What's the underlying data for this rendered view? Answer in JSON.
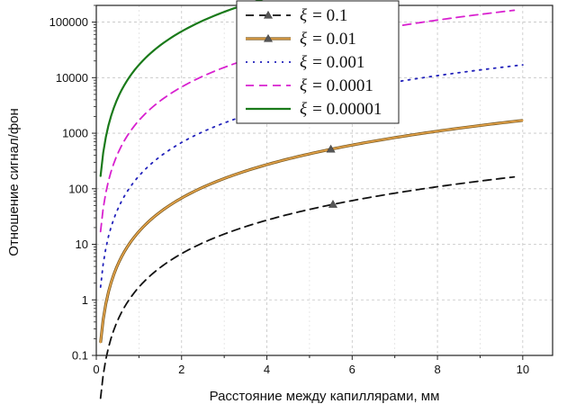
{
  "chart_data": {
    "type": "line",
    "title": "",
    "xlabel": "Расстояние между капиллярами, мм",
    "ylabel": "Отношение сигнал/фон",
    "xlim": [
      0,
      10.7
    ],
    "ylim": [
      0.1,
      200000
    ],
    "yscale": "log",
    "grid": true,
    "legend_position": "top-right",
    "x_ticks": [
      0,
      2,
      4,
      6,
      8,
      10
    ],
    "x_tick_labels": [
      "0",
      "2",
      "4",
      "6",
      "8",
      "10"
    ],
    "y_ticks": [
      0.1,
      1,
      10,
      100,
      1000,
      10000,
      100000
    ],
    "y_tick_labels": [
      "0.1",
      "1",
      "10",
      "100",
      "1000",
      "10000",
      "100000"
    ],
    "series": [
      {
        "name": "ξ = 0.1",
        "legend_symbol": "ξ",
        "legend_value": "= 0.1",
        "xi": 0.1,
        "color": "#111111",
        "dash": "dashed",
        "marker": "triangle",
        "marker_points": [
          5.55
        ],
        "x_range": [
          0.1,
          9.8
        ],
        "y_at_x1": 1.7
      },
      {
        "name": "ξ = 0.01",
        "legend_symbol": "ξ",
        "legend_value": "= 0.01",
        "xi": 0.01,
        "color": "#e8a54a",
        "dash": "solid",
        "marker": "triangle",
        "marker_points": [
          5.5
        ],
        "x_range": [
          0.1,
          10.0
        ],
        "y_at_x1": 17
      },
      {
        "name": "ξ = 0.001",
        "legend_symbol": "ξ",
        "legend_value": "= 0.001",
        "xi": 0.001,
        "color": "#2222bb",
        "dash": "dotted",
        "marker": "none",
        "marker_points": [],
        "x_range": [
          0.1,
          10.0
        ],
        "y_at_x1": 170
      },
      {
        "name": "ξ = 0.0001",
        "legend_symbol": "ξ",
        "legend_value": "= 0.0001",
        "xi": 0.0001,
        "color": "#d820cf",
        "dash": "dashed",
        "marker": "none",
        "marker_points": [],
        "x_range": [
          0.1,
          9.8
        ],
        "y_at_x1": 1700
      },
      {
        "name": "ξ = 0.00001",
        "legend_symbol": "ξ",
        "legend_value": "= 0.00001",
        "xi": 1e-05,
        "color": "#1a7a1a",
        "dash": "solid",
        "marker": "none",
        "marker_points": [],
        "x_range": [
          0.1,
          10.0
        ],
        "y_at_x1": 17000
      }
    ]
  }
}
